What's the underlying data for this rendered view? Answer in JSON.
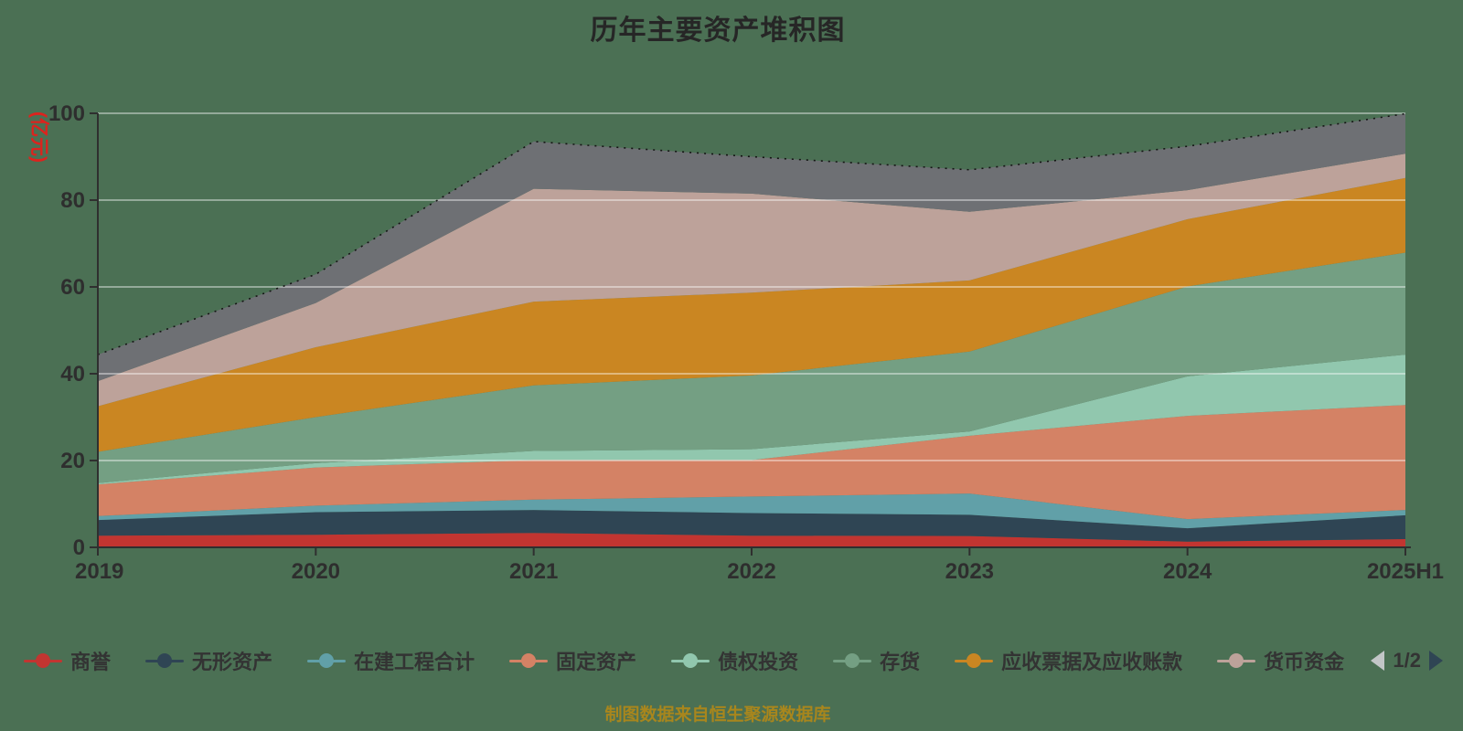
{
  "title": "历年主要资产堆积图",
  "caption": "制图数据来自恒生聚源数据库",
  "y_axis": {
    "name": "(亿元)",
    "tick_labels": [
      "0",
      "20",
      "40",
      "60",
      "80",
      "100"
    ],
    "max": 100
  },
  "x_axis": {
    "tick_labels": [
      "2019",
      "2020",
      "2021",
      "2022",
      "2023",
      "2024",
      "2025H1"
    ]
  },
  "legend": {
    "items": [
      {
        "label": "商誉",
        "color": "#c23531"
      },
      {
        "label": "无形资产",
        "color": "#2f4554"
      },
      {
        "label": "在建工程合计",
        "color": "#61a0a8"
      },
      {
        "label": "固定资产",
        "color": "#d48265"
      },
      {
        "label": "债权投资",
        "color": "#91c7ae"
      },
      {
        "label": "存货",
        "color": "#749f83"
      },
      {
        "label": "应收票据及应收账款",
        "color": "#ca8622"
      },
      {
        "label": "货币资金",
        "color": "#bda29a"
      }
    ],
    "pagination": {
      "current": "1/2",
      "prev_icon": "left-triangle",
      "next_icon": "right-triangle"
    }
  },
  "colors": {
    "background": "#4b7054",
    "title_text": "#262626",
    "axis_line": "#2f2f2f",
    "tick_label": "#2e2e2e",
    "gridline": "rgba(255,255,255,0.55)",
    "y_axis_name": "#dc231e",
    "legend_text": "#333333",
    "caption_text": "#a8861d",
    "pager_prev": "#c2c6c7",
    "pager_next": "#2f4554",
    "top_dash_line": "#141414"
  },
  "chart_data": {
    "type": "area",
    "stacked": true,
    "title": "历年主要资产堆积图",
    "ylabel": "(亿元)",
    "ylim": [
      0,
      100
    ],
    "grid": true,
    "legend_position": "bottom",
    "x": [
      "2019",
      "2020",
      "2021",
      "2022",
      "2023",
      "2024",
      "2025H1"
    ],
    "series": [
      {
        "name": "商誉",
        "color": "#c23531",
        "values": [
          2.7,
          2.9,
          3.3,
          2.7,
          2.6,
          1.3,
          1.9
        ]
      },
      {
        "name": "无形资产",
        "color": "#2f4554",
        "values": [
          3.6,
          5.2,
          5.3,
          5.2,
          4.9,
          3.1,
          5.5
        ]
      },
      {
        "name": "在建工程合计",
        "color": "#61a0a8",
        "values": [
          0.9,
          1.5,
          2.4,
          3.8,
          4.9,
          2.1,
          1.2
        ]
      },
      {
        "name": "固定资产",
        "color": "#d48265",
        "values": [
          7.3,
          8.8,
          9.1,
          8.4,
          13.3,
          23.8,
          24.2
        ]
      },
      {
        "name": "债权投资",
        "color": "#91c7ae",
        "values": [
          0.3,
          1.0,
          2.1,
          2.5,
          1.0,
          9.1,
          11.6
        ]
      },
      {
        "name": "存货",
        "color": "#749f83",
        "values": [
          7.2,
          10.6,
          15.1,
          17.0,
          18.4,
          20.7,
          23.5
        ]
      },
      {
        "name": "应收票据及应收账款",
        "color": "#ca8622",
        "values": [
          10.5,
          16.1,
          19.3,
          19.1,
          16.4,
          15.5,
          17.2
        ]
      },
      {
        "name": "货币资金",
        "color": "#bda29a",
        "values": [
          5.8,
          10.2,
          26.0,
          22.8,
          15.8,
          6.7,
          5.6
        ]
      },
      {
        "name": "",
        "color": "#6e7074",
        "values": [
          6.1,
          6.6,
          10.9,
          8.5,
          9.7,
          10.1,
          9.2
        ]
      }
    ]
  }
}
